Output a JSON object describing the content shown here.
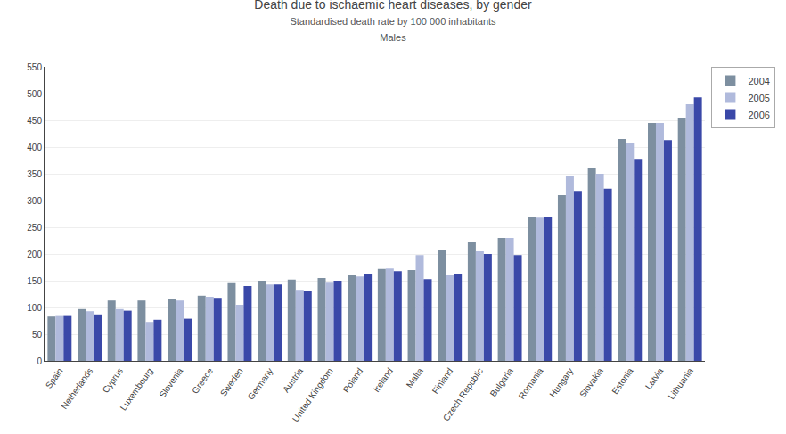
{
  "chart_data": {
    "type": "bar",
    "title": "Death due to ischaemic heart diseases, by gender",
    "subtitle": [
      "Standardised death rate by 100 000 inhabitants",
      "Males"
    ],
    "categories": [
      "Spain",
      "Netherlands",
      "Cyprus",
      "Luxembourg",
      "Slovenia",
      "Greece",
      "Sweden",
      "Germany",
      "Austria",
      "United Kingdom",
      "Poland",
      "Ireland",
      "Malta",
      "Finland",
      "Czech Republic",
      "Bulgaria",
      "Romania",
      "Hungary",
      "Slovakia",
      "Estonia",
      "Latvia",
      "Lithuania"
    ],
    "series": [
      {
        "name": "2004",
        "color": "#7d8fa0",
        "values": [
          83,
          97,
          113,
          113,
          115,
          122,
          147,
          150,
          152,
          155,
          160,
          172,
          170,
          207,
          222,
          230,
          270,
          310,
          360,
          415,
          445,
          455
        ]
      },
      {
        "name": "2005",
        "color": "#b0badc",
        "values": [
          84,
          93,
          97,
          73,
          113,
          120,
          105,
          143,
          133,
          148,
          158,
          173,
          198,
          160,
          205,
          230,
          268,
          345,
          350,
          408,
          445,
          480
        ]
      },
      {
        "name": "2006",
        "color": "#3a48a8",
        "values": [
          84,
          87,
          94,
          77,
          79,
          118,
          140,
          143,
          131,
          150,
          163,
          168,
          153,
          163,
          200,
          198,
          270,
          318,
          322,
          378,
          413,
          493
        ]
      }
    ],
    "ylim": [
      0,
      550
    ],
    "yticks": [
      0,
      50,
      100,
      150,
      200,
      250,
      300,
      350,
      400,
      450,
      500,
      550
    ],
    "grid": true,
    "legend": "upper right"
  }
}
